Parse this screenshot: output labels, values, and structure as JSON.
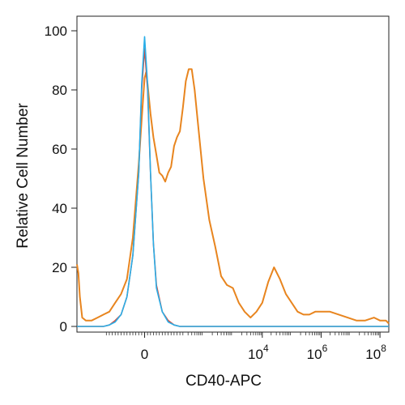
{
  "chart_data": {
    "type": "line",
    "title": "",
    "xlabel": "CD40-APC",
    "ylabel": "Relative Cell Number",
    "ylim": [
      0,
      105
    ],
    "xscale": "biexponential",
    "xlim": [
      -2.3,
      8.3
    ],
    "grid": false,
    "legend": "none",
    "y_ticks": [
      {
        "value": 0,
        "label": "0"
      },
      {
        "value": 20,
        "label": "20"
      },
      {
        "value": 40,
        "label": "40"
      },
      {
        "value": 60,
        "label": "60"
      },
      {
        "value": 80,
        "label": "80"
      },
      {
        "value": 100,
        "label": "100"
      }
    ],
    "x_ticks": [
      {
        "value": 0,
        "base": "0",
        "exp": ""
      },
      {
        "value": 4,
        "base": "10",
        "exp": "4"
      },
      {
        "value": 6,
        "base": "10",
        "exp": "6"
      },
      {
        "value": 8,
        "base": "10",
        "exp": "8"
      }
    ],
    "series": [
      {
        "color": "#e8851f",
        "x": [
          -2.3,
          -2.25,
          -2.2,
          -2.12,
          -2.0,
          -1.8,
          -1.6,
          -1.4,
          -1.2,
          -1.0,
          -0.8,
          -0.6,
          -0.4,
          -0.2,
          -0.1,
          0.0,
          0.05,
          0.1,
          0.2,
          0.3,
          0.4,
          0.5,
          0.6,
          0.7,
          0.8,
          0.9,
          1.0,
          1.1,
          1.2,
          1.3,
          1.4,
          1.5,
          1.6,
          1.7,
          1.8,
          2.0,
          2.2,
          2.4,
          2.6,
          2.8,
          3.0,
          3.2,
          3.4,
          3.6,
          3.8,
          4.0,
          4.2,
          4.4,
          4.6,
          4.8,
          5.0,
          5.2,
          5.4,
          5.6,
          5.8,
          6.0,
          6.3,
          6.6,
          6.9,
          7.2,
          7.5,
          7.8,
          8.0,
          8.2,
          8.3
        ],
        "values": [
          21,
          18,
          10,
          3,
          2,
          2,
          3,
          4,
          5,
          8,
          11,
          16,
          30,
          55,
          70,
          84,
          86,
          82,
          72,
          64,
          58,
          52,
          51,
          49,
          52,
          54,
          61,
          64,
          66,
          74,
          83,
          87,
          87,
          80,
          70,
          50,
          36,
          27,
          17,
          14,
          13,
          8,
          5,
          3,
          5,
          8,
          15,
          20,
          16,
          11,
          8,
          5,
          4,
          4,
          5,
          5,
          5,
          4,
          3,
          2,
          2,
          3,
          2,
          2,
          1
        ]
      },
      {
        "color": "#d84a3a",
        "x": [
          -2.3,
          -1.4,
          -1.2,
          -1.0,
          -0.8,
          -0.6,
          -0.4,
          -0.2,
          -0.1,
          0.0,
          0.1,
          0.2,
          0.3,
          0.4,
          0.6,
          0.8,
          1.0,
          1.2,
          1.6,
          8.3
        ],
        "values": [
          0,
          0,
          0.5,
          2,
          4,
          10,
          24,
          52,
          80,
          94,
          80,
          52,
          28,
          14,
          5,
          2,
          0.5,
          0,
          0,
          0
        ]
      },
      {
        "color": "#29aee8",
        "x": [
          -2.3,
          -1.4,
          -1.2,
          -1.0,
          -0.8,
          -0.6,
          -0.4,
          -0.2,
          -0.1,
          0.0,
          0.1,
          0.2,
          0.3,
          0.4,
          0.6,
          0.8,
          1.0,
          1.2,
          1.6,
          8.3
        ],
        "values": [
          0,
          0,
          0.5,
          1.5,
          4,
          10,
          24,
          52,
          82,
          98,
          82,
          52,
          28,
          13,
          5,
          1.5,
          0.5,
          0,
          0,
          0
        ]
      }
    ]
  }
}
